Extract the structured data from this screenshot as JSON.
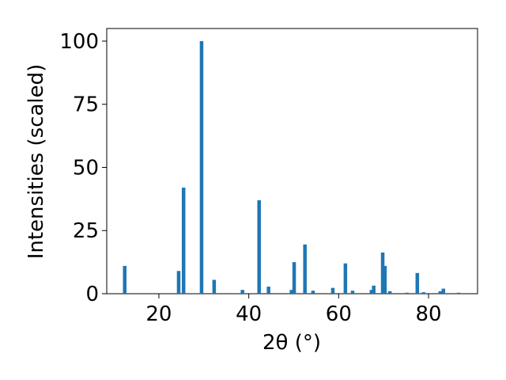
{
  "chart_data": {
    "type": "bar",
    "x_label": "2θ (°)",
    "y_label": "Intensities (scaled)",
    "color": "#1f77b4",
    "x": [
      12.4,
      24.4,
      25.5,
      29.5,
      32.3,
      38.6,
      42.3,
      44.4,
      49.5,
      50.1,
      52.5,
      54.3,
      58.7,
      61.5,
      63.1,
      67.3,
      67.8,
      69.8,
      70.3,
      71.4,
      75.2,
      77.5,
      78.9,
      82.6,
      83.3,
      86.7
    ],
    "values": [
      11,
      9,
      42,
      100,
      5.5,
      1.5,
      37,
      2.8,
      1.5,
      12.5,
      19.5,
      1.2,
      2.3,
      12,
      1.2,
      1.5,
      3.2,
      16.3,
      11,
      1,
      0.4,
      8.2,
      0.6,
      1,
      2,
      0.4
    ],
    "xlim": [
      8.4,
      90.9
    ],
    "ylim": [
      0,
      105
    ],
    "xticks": [
      20,
      40,
      60,
      80
    ],
    "yticks": [
      0,
      25,
      50,
      75,
      100
    ]
  }
}
